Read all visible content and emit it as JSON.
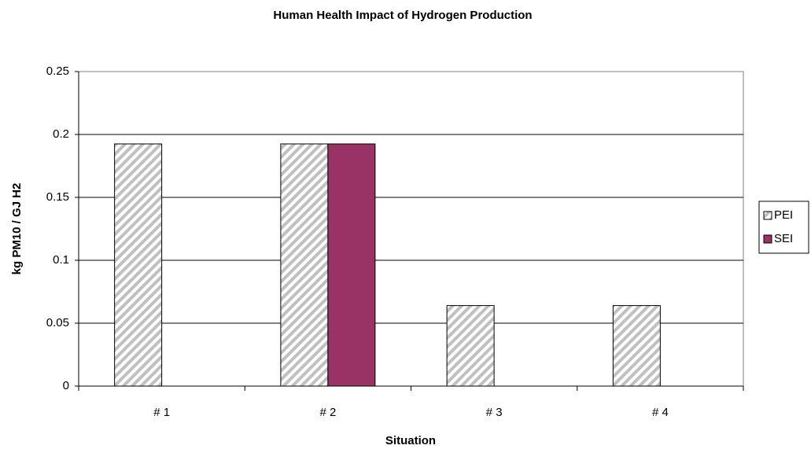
{
  "chart_data": {
    "type": "bar",
    "title": "Human Health Impact of Hydrogen Production",
    "x_label": "Situation",
    "y_label": "kg PM10 / GJ H2",
    "categories": [
      "# 1",
      "# 2",
      "# 3",
      "# 4"
    ],
    "series": [
      {
        "name": "PEI",
        "color": "#c0c0c0",
        "pattern": "hatch",
        "values": [
          0.1925,
          0.1925,
          0.064,
          0.064
        ]
      },
      {
        "name": "SEI",
        "color": "#993366",
        "pattern": "solid",
        "values": [
          0,
          0.1925,
          0,
          0
        ]
      }
    ],
    "ylim": [
      0,
      0.25
    ],
    "yticks": [
      0,
      0.05,
      0.1,
      0.15,
      0.2,
      0.25
    ],
    "grid": true,
    "legend": "right"
  }
}
